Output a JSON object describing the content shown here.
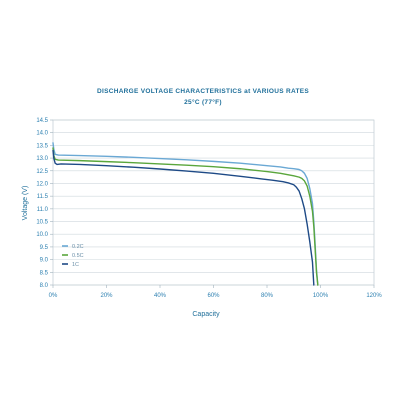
{
  "chart_data": {
    "type": "line",
    "title": "DISCHARGE VOLTAGE CHARACTERISTICS at VARIOUS RATES",
    "subtitle": "25°C (77°F)",
    "xlabel": "Capacity",
    "ylabel": "Voltage (V)",
    "xlim": [
      0,
      120
    ],
    "ylim": [
      8.0,
      14.5
    ],
    "x_ticks": [
      "0%",
      "20%",
      "40%",
      "60%",
      "80%",
      "100%",
      "120%"
    ],
    "y_ticks": [
      "14.5",
      "14.0",
      "13.5",
      "13.0",
      "12.5",
      "12.0",
      "11.5",
      "11.0",
      "10.5",
      "10.0",
      "9.5",
      "9.0",
      "8.5",
      "8.0"
    ],
    "grid": true,
    "legend_position": "bottom-left",
    "series": [
      {
        "name": "0.2C",
        "color": "#6aa8d4",
        "x": [
          0,
          0.3,
          0.8,
          2,
          10,
          20,
          30,
          40,
          50,
          60,
          70,
          80,
          85,
          88,
          90,
          92,
          93,
          94,
          95,
          96,
          97,
          97.5,
          98,
          98.5,
          99
        ],
        "y": [
          13.6,
          13.35,
          13.15,
          13.12,
          13.1,
          13.07,
          13.03,
          12.98,
          12.93,
          12.87,
          12.8,
          12.7,
          12.65,
          12.6,
          12.58,
          12.55,
          12.5,
          12.4,
          12.2,
          11.8,
          11.2,
          10.5,
          9.6,
          8.6,
          8.0
        ]
      },
      {
        "name": "0.5C",
        "color": "#5aa63c",
        "x": [
          0,
          0.3,
          0.8,
          2,
          10,
          20,
          30,
          40,
          50,
          60,
          70,
          80,
          85,
          88,
          90,
          92,
          93,
          94,
          95,
          96,
          97,
          97.5,
          98,
          98.5,
          99
        ],
        "y": [
          13.4,
          13.1,
          12.95,
          12.92,
          12.9,
          12.86,
          12.82,
          12.77,
          12.72,
          12.66,
          12.58,
          12.47,
          12.4,
          12.34,
          12.3,
          12.25,
          12.2,
          12.1,
          11.9,
          11.5,
          10.9,
          10.3,
          9.4,
          8.5,
          8.0
        ]
      },
      {
        "name": "1C",
        "color": "#1e4a86",
        "x": [
          0,
          0.3,
          0.8,
          1.5,
          3,
          10,
          20,
          30,
          40,
          50,
          60,
          70,
          78,
          82,
          86,
          88,
          90,
          91,
          92,
          93,
          94,
          95,
          96,
          97,
          97.5
        ],
        "y": [
          13.3,
          13.0,
          12.8,
          12.75,
          12.77,
          12.75,
          12.7,
          12.64,
          12.57,
          12.49,
          12.4,
          12.28,
          12.18,
          12.13,
          12.07,
          12.02,
          11.95,
          11.85,
          11.7,
          11.4,
          11.0,
          10.4,
          9.7,
          8.9,
          8.0
        ]
      }
    ]
  }
}
